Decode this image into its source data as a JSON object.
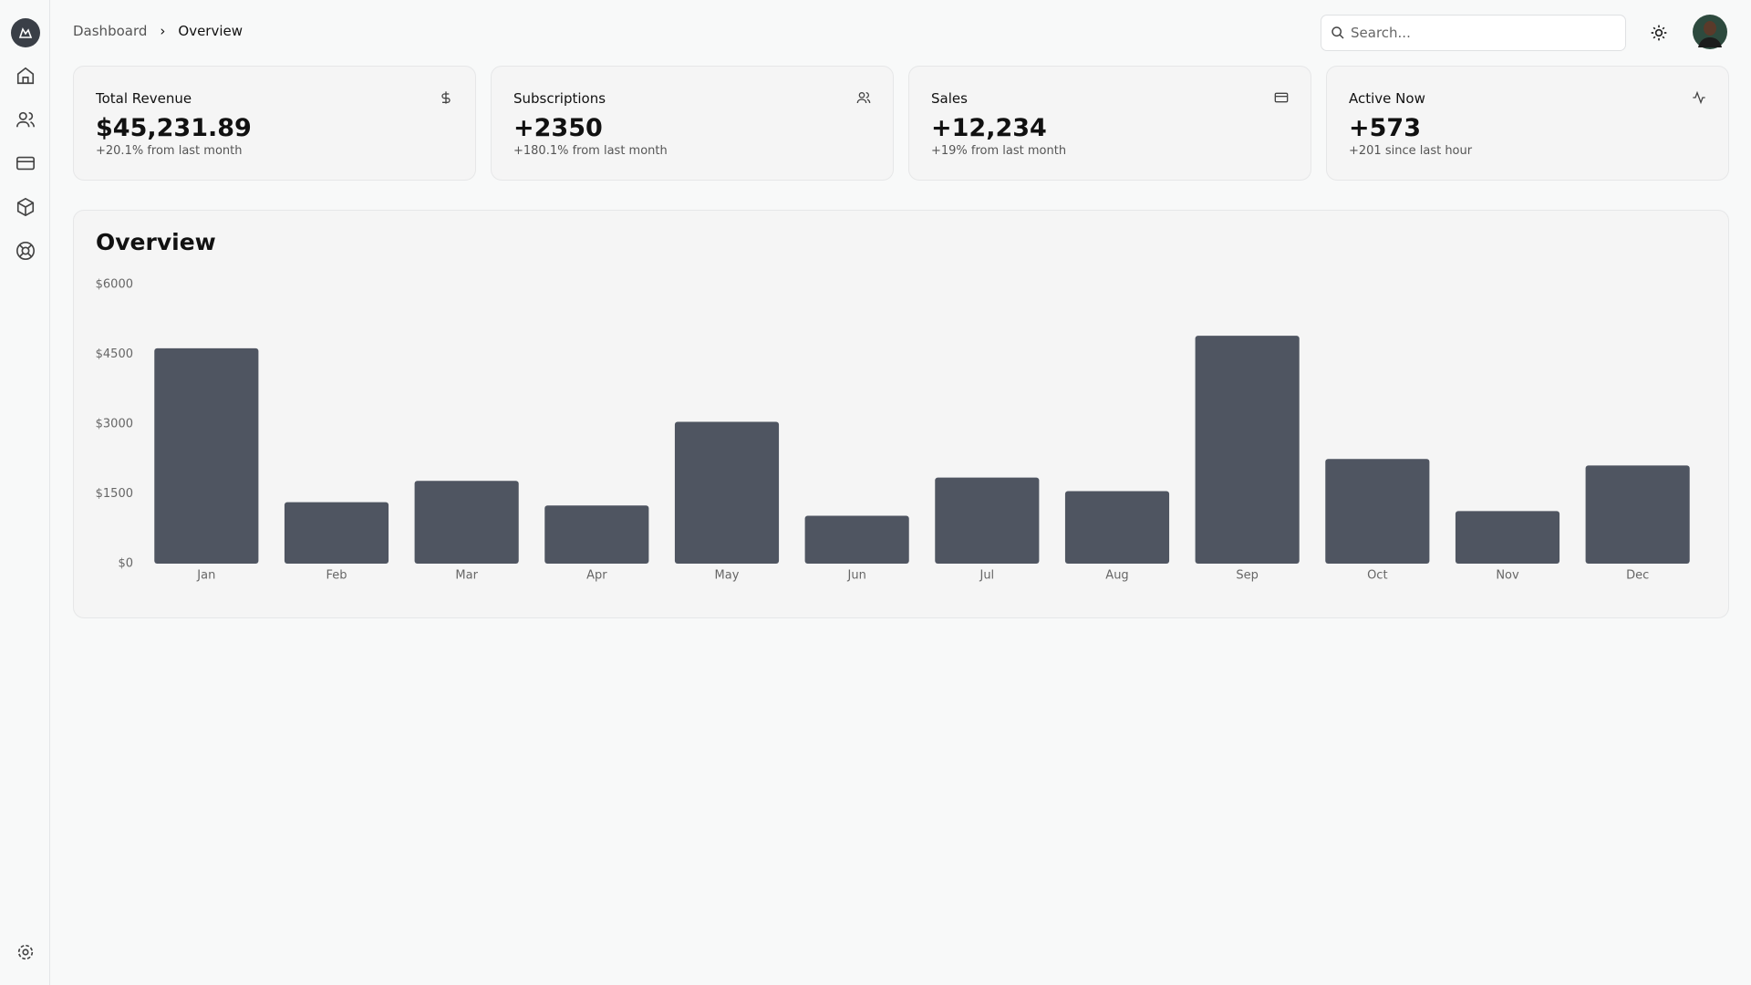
{
  "breadcrumb": [
    "Dashboard",
    "Overview"
  ],
  "search_placeholder": "Search...",
  "cards": [
    {
      "title": "Total Revenue",
      "value": "$45,231.89",
      "change": "+20.1% from last month"
    },
    {
      "title": "Subscriptions",
      "value": "+2350",
      "change": "+180.1% from last month"
    },
    {
      "title": "Sales",
      "value": "+12,234",
      "change": "+19% from last month"
    },
    {
      "title": "Active Now",
      "value": "+573",
      "change": "+201 since last hour"
    }
  ],
  "chart_data": {
    "type": "bar",
    "title": "Overview",
    "categories": [
      "Jan",
      "Feb",
      "Mar",
      "Apr",
      "May",
      "Jun",
      "Jul",
      "Aug",
      "Sep",
      "Oct",
      "Nov",
      "Dec"
    ],
    "values": [
      4630,
      1320,
      1780,
      1250,
      3050,
      1030,
      1850,
      1560,
      4900,
      2250,
      1130,
      2110
    ],
    "color": "#4f5561",
    "ylim": [
      0,
      6000
    ],
    "yticks": [
      {
        "value": 0,
        "label": "$0"
      },
      {
        "value": 1500,
        "label": "$1500"
      },
      {
        "value": 3000,
        "label": "$3000"
      },
      {
        "value": 4500,
        "label": "$4500"
      },
      {
        "value": 6000,
        "label": "$6000"
      }
    ],
    "grid": false
  }
}
